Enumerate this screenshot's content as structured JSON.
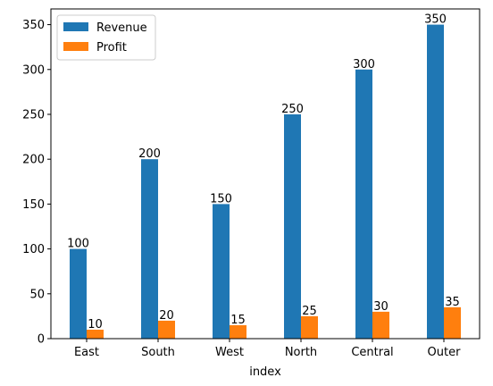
{
  "chart_data": {
    "type": "bar",
    "categories": [
      "East",
      "South",
      "West",
      "North",
      "Central",
      "Outer"
    ],
    "series": [
      {
        "name": "Revenue",
        "values": [
          100,
          200,
          150,
          250,
          300,
          350
        ],
        "color": "#1f77b4"
      },
      {
        "name": "Profit",
        "values": [
          10,
          20,
          15,
          25,
          30,
          35
        ],
        "color": "#ff7f0e"
      }
    ],
    "title": "",
    "xlabel": "index",
    "ylabel": "",
    "ylim": [
      0,
      367.5
    ],
    "yticks": [
      0,
      50,
      100,
      150,
      200,
      250,
      300,
      350
    ],
    "grid": false,
    "legend_position": "upper-left",
    "data_labels": true
  }
}
